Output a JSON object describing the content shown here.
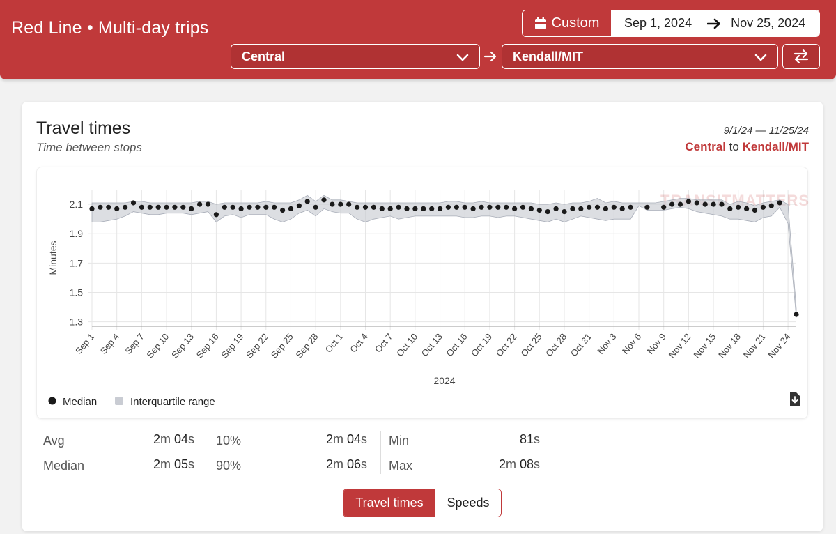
{
  "header": {
    "title": "Red Line • Multi-day trips",
    "custom_label": "Custom",
    "start_date": "Sep 1, 2024",
    "end_date": "Nov 25, 2024",
    "from_station": "Central",
    "to_station": "Kendall/MIT"
  },
  "card": {
    "title": "Travel times",
    "subtitle": "Time between stops",
    "date_range": "9/1/24 — 11/25/24",
    "route_from": "Central",
    "route_joiner": "to",
    "route_to": "Kendall/MIT"
  },
  "chart_data": {
    "type": "line",
    "xlabel": "2024",
    "ylabel": "Minutes",
    "ylim": [
      1.27,
      2.2
    ],
    "yticks": [
      1.3,
      1.5,
      1.7,
      1.9,
      2.1
    ],
    "xtick_labels": [
      "Sep 1",
      "Sep 4",
      "Sep 7",
      "Sep 10",
      "Sep 13",
      "Sep 16",
      "Sep 19",
      "Sep 22",
      "Sep 25",
      "Sep 28",
      "Oct 1",
      "Oct 4",
      "Oct 7",
      "Oct 10",
      "Oct 13",
      "Oct 16",
      "Oct 19",
      "Oct 22",
      "Oct 25",
      "Oct 28",
      "Oct 31",
      "Nov 3",
      "Nov 6",
      "Nov 9",
      "Nov 12",
      "Nov 15",
      "Nov 18",
      "Nov 21",
      "Nov 24"
    ],
    "grid": true,
    "legend": [
      "Median",
      "Interquartile range"
    ],
    "watermark": "TRANSITMATTERS",
    "series": [
      {
        "name": "Median",
        "color": "#1a1a1a",
        "points": [
          [
            0,
            2.07
          ],
          [
            1,
            2.08
          ],
          [
            2,
            2.08
          ],
          [
            3,
            2.07
          ],
          [
            4,
            2.08
          ],
          [
            5,
            2.11
          ],
          [
            6,
            2.08
          ],
          [
            7,
            2.08
          ],
          [
            8,
            2.08
          ],
          [
            9,
            2.08
          ],
          [
            10,
            2.08
          ],
          [
            11,
            2.08
          ],
          [
            12,
            2.07
          ],
          [
            13,
            2.1
          ],
          [
            14,
            2.1
          ],
          [
            15,
            2.03
          ],
          [
            16,
            2.08
          ],
          [
            17,
            2.08
          ],
          [
            18,
            2.07
          ],
          [
            19,
            2.08
          ],
          [
            20,
            2.08
          ],
          [
            21,
            2.08
          ],
          [
            22,
            2.08
          ],
          [
            23,
            2.06
          ],
          [
            24,
            2.07
          ],
          [
            25,
            2.09
          ],
          [
            26,
            2.12
          ],
          [
            27,
            2.08
          ],
          [
            28,
            2.13
          ],
          [
            29,
            2.1
          ],
          [
            30,
            2.1
          ],
          [
            31,
            2.1
          ],
          [
            32,
            2.08
          ],
          [
            33,
            2.08
          ],
          [
            34,
            2.08
          ],
          [
            35,
            2.07
          ],
          [
            36,
            2.07
          ],
          [
            37,
            2.08
          ],
          [
            38,
            2.07
          ],
          [
            39,
            2.07
          ],
          [
            40,
            2.07
          ],
          [
            41,
            2.07
          ],
          [
            42,
            2.07
          ],
          [
            43,
            2.08
          ],
          [
            44,
            2.08
          ],
          [
            45,
            2.08
          ],
          [
            46,
            2.07
          ],
          [
            47,
            2.08
          ],
          [
            48,
            2.08
          ],
          [
            49,
            2.08
          ],
          [
            50,
            2.08
          ],
          [
            51,
            2.07
          ],
          [
            52,
            2.08
          ],
          [
            53,
            2.07
          ],
          [
            54,
            2.06
          ],
          [
            55,
            2.05
          ],
          [
            56,
            2.07
          ],
          [
            57,
            2.05
          ],
          [
            58,
            2.07
          ],
          [
            59,
            2.07
          ],
          [
            60,
            2.08
          ],
          [
            61,
            2.08
          ],
          [
            62,
            2.07
          ],
          [
            63,
            2.08
          ],
          [
            64,
            2.07
          ],
          [
            65,
            2.08
          ],
          [
            67,
            2.08
          ],
          [
            69,
            2.08
          ],
          [
            70,
            2.1
          ],
          [
            71,
            2.1
          ],
          [
            72,
            2.12
          ],
          [
            73,
            2.11
          ],
          [
            74,
            2.1
          ],
          [
            75,
            2.1
          ],
          [
            76,
            2.1
          ],
          [
            77,
            2.07
          ],
          [
            78,
            2.08
          ],
          [
            79,
            2.07
          ],
          [
            80,
            2.06
          ],
          [
            81,
            2.08
          ],
          [
            82,
            2.09
          ],
          [
            83,
            2.11
          ],
          [
            85,
            1.35
          ]
        ]
      },
      {
        "name": "Interquartile range",
        "color": "#c9ccd3",
        "upper": [
          2.11,
          2.11,
          2.11,
          2.11,
          2.11,
          2.12,
          2.12,
          2.11,
          2.11,
          2.11,
          2.11,
          2.11,
          2.11,
          2.12,
          2.12,
          2.1,
          2.11,
          2.11,
          2.11,
          2.11,
          2.11,
          2.12,
          2.11,
          2.11,
          2.11,
          2.13,
          2.16,
          2.12,
          2.16,
          2.13,
          2.13,
          2.12,
          2.11,
          2.11,
          2.11,
          2.11,
          2.11,
          2.11,
          2.11,
          2.11,
          2.11,
          2.11,
          2.11,
          2.12,
          2.12,
          2.11,
          2.11,
          2.12,
          2.11,
          2.11,
          2.11,
          2.11,
          2.11,
          2.11,
          2.1,
          2.1,
          2.11,
          2.1,
          2.11,
          2.11,
          2.12,
          2.14,
          2.11,
          2.12,
          2.11,
          2.11,
          2.11,
          2.11,
          2.11,
          2.12,
          2.13,
          2.14,
          2.14,
          2.13,
          2.13,
          2.13,
          2.13,
          2.1,
          2.12,
          2.11,
          2.09,
          2.11,
          2.12,
          2.13,
          2.1,
          1.39
        ],
        "lower": [
          1.98,
          1.98,
          1.99,
          2.0,
          2.02,
          2.05,
          2.04,
          2.03,
          2.03,
          2.04,
          2.04,
          2.04,
          2.03,
          2.04,
          2.05,
          1.98,
          2.02,
          2.03,
          2.01,
          2.03,
          2.03,
          2.03,
          2.0,
          1.98,
          2.0,
          2.04,
          2.06,
          2.02,
          2.07,
          2.05,
          2.04,
          2.04,
          2.0,
          1.98,
          2.0,
          2.01,
          2.02,
          2.0,
          2.01,
          2.02,
          2.02,
          2.02,
          2.02,
          2.02,
          2.02,
          2.01,
          2.01,
          2.02,
          2.02,
          2.01,
          2.02,
          2.02,
          2.01,
          2.0,
          1.99,
          1.98,
          2.0,
          1.98,
          2.0,
          2.02,
          2.01,
          2.0,
          1.99,
          2.0,
          2.0,
          2.0,
          2.09,
          2.06,
          2.06,
          2.06,
          2.07,
          2.08,
          2.07,
          2.05,
          2.04,
          2.03,
          2.02,
          2.0,
          2.0,
          1.99,
          1.98,
          2.01,
          2.02,
          2.08,
          1.97,
          1.33
        ]
      }
    ]
  },
  "stats": [
    {
      "label": "Avg",
      "min": "2",
      "sec": "04"
    },
    {
      "label": "Median",
      "min": "2",
      "sec": "05"
    },
    {
      "label": "10%",
      "min": "2",
      "sec": "04"
    },
    {
      "label": "90%",
      "min": "2",
      "sec": "06"
    },
    {
      "label": "Min",
      "value": "81"
    },
    {
      "label": "Max",
      "min": "2",
      "sec": "08"
    }
  ],
  "units": {
    "min": "m",
    "sec": "s"
  },
  "tabs": {
    "active": "Travel times",
    "other": "Speeds"
  },
  "colors": {
    "accent": "#c0393a",
    "accent_dark": "#b03233",
    "median": "#1a1a1a",
    "iqr": "#c9ccd3"
  }
}
